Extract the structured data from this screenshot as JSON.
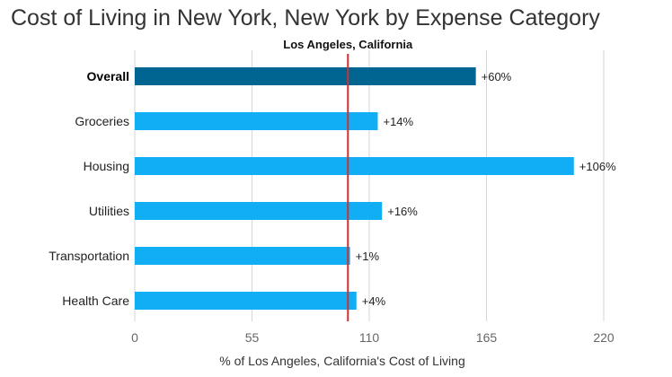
{
  "chart_data": {
    "type": "bar",
    "orientation": "horizontal",
    "title": "Cost of Living in New York, New York by Expense Category",
    "reference_label": "Los Angeles, California",
    "reference_value": 100,
    "xlabel": "% of Los Angeles, California's Cost of Living",
    "xlim": [
      0,
      220
    ],
    "xticks": [
      0,
      55,
      110,
      165,
      220
    ],
    "grid": true,
    "categories": [
      "Overall",
      "Groceries",
      "Housing",
      "Utilities",
      "Transportation",
      "Health Care"
    ],
    "values": [
      160,
      114,
      206,
      116,
      101,
      104
    ],
    "value_labels": [
      "+60%",
      "+14%",
      "+106%",
      "+16%",
      "+1%",
      "+4%"
    ],
    "highlight_category": "Overall",
    "colors": {
      "highlight_bar": "#006691",
      "bar": "#11AEF5",
      "reference_line": "#D32F2F",
      "grid": "#D6D6D6"
    }
  }
}
